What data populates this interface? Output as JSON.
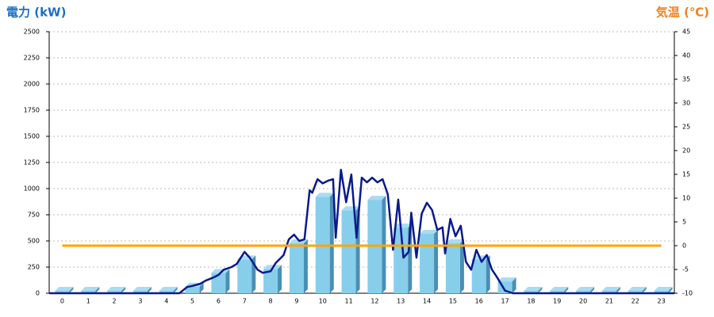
{
  "chart_data": {
    "type": "bar",
    "ylabel": "電力 (kW)",
    "y2label": "気温 (℃)",
    "categories": [
      "0",
      "1",
      "2",
      "3",
      "4",
      "5",
      "6",
      "7",
      "8",
      "9",
      "10",
      "11",
      "12",
      "13",
      "14",
      "15",
      "16",
      "17",
      "18",
      "19",
      "20",
      "21",
      "22",
      "23"
    ],
    "ylim": [
      0,
      2500
    ],
    "yticks": [
      0,
      250,
      500,
      750,
      1000,
      1250,
      1500,
      1750,
      2000,
      2250,
      2500
    ],
    "y2lim": [
      -10,
      45
    ],
    "y2ticks": [
      -10,
      -5,
      0,
      5,
      10,
      15,
      20,
      25,
      30,
      35,
      40,
      45
    ],
    "xlim": [
      0,
      24
    ],
    "grid": true,
    "series": [
      {
        "type": "bar",
        "color": "#87ceeb",
        "values": [
          0,
          0,
          0,
          0,
          0,
          40,
          170,
          300,
          210,
          455,
          900,
          770,
          870,
          605,
          545,
          455,
          300,
          90,
          0,
          0,
          0,
          0,
          0,
          0
        ]
      },
      {
        "type": "line",
        "color": "#0a1a8c",
        "x": [
          0,
          5.0,
          5.3,
          5.5,
          5.8,
          6.0,
          6.3,
          6.5,
          6.7,
          7.0,
          7.2,
          7.5,
          7.7,
          8.0,
          8.2,
          8.5,
          8.7,
          9.0,
          9.2,
          9.4,
          9.6,
          9.8,
          10.0,
          10.1,
          10.3,
          10.5,
          10.7,
          10.9,
          11.0,
          11.2,
          11.4,
          11.6,
          11.8,
          12.0,
          12.2,
          12.4,
          12.6,
          12.8,
          13.0,
          13.2,
          13.4,
          13.6,
          13.8,
          13.9,
          14.1,
          14.3,
          14.5,
          14.7,
          14.9,
          15.1,
          15.2,
          15.4,
          15.6,
          15.8,
          16.0,
          16.2,
          16.4,
          16.6,
          16.8,
          17.0,
          17.2,
          17.5,
          17.8,
          24
        ],
        "values": [
          0,
          0,
          60,
          70,
          90,
          120,
          150,
          175,
          225,
          250,
          280,
          395,
          340,
          225,
          195,
          210,
          290,
          365,
          515,
          560,
          500,
          515,
          985,
          960,
          1090,
          1050,
          1075,
          1090,
          530,
          1180,
          870,
          1135,
          530,
          1105,
          1060,
          1105,
          1060,
          1090,
          945,
          415,
          895,
          340,
          395,
          770,
          340,
          760,
          865,
          795,
          605,
          630,
          380,
          710,
          545,
          645,
          300,
          225,
          415,
          300,
          365,
          225,
          150,
          25,
          0,
          0
        ]
      },
      {
        "type": "line",
        "axis": "y2",
        "color": "#ffa500",
        "values": [
          0,
          0,
          0,
          0,
          0,
          0,
          0,
          0,
          0,
          0,
          0,
          0,
          0,
          0,
          0,
          0,
          0,
          0,
          0,
          0,
          0,
          0,
          0,
          0
        ]
      }
    ]
  }
}
